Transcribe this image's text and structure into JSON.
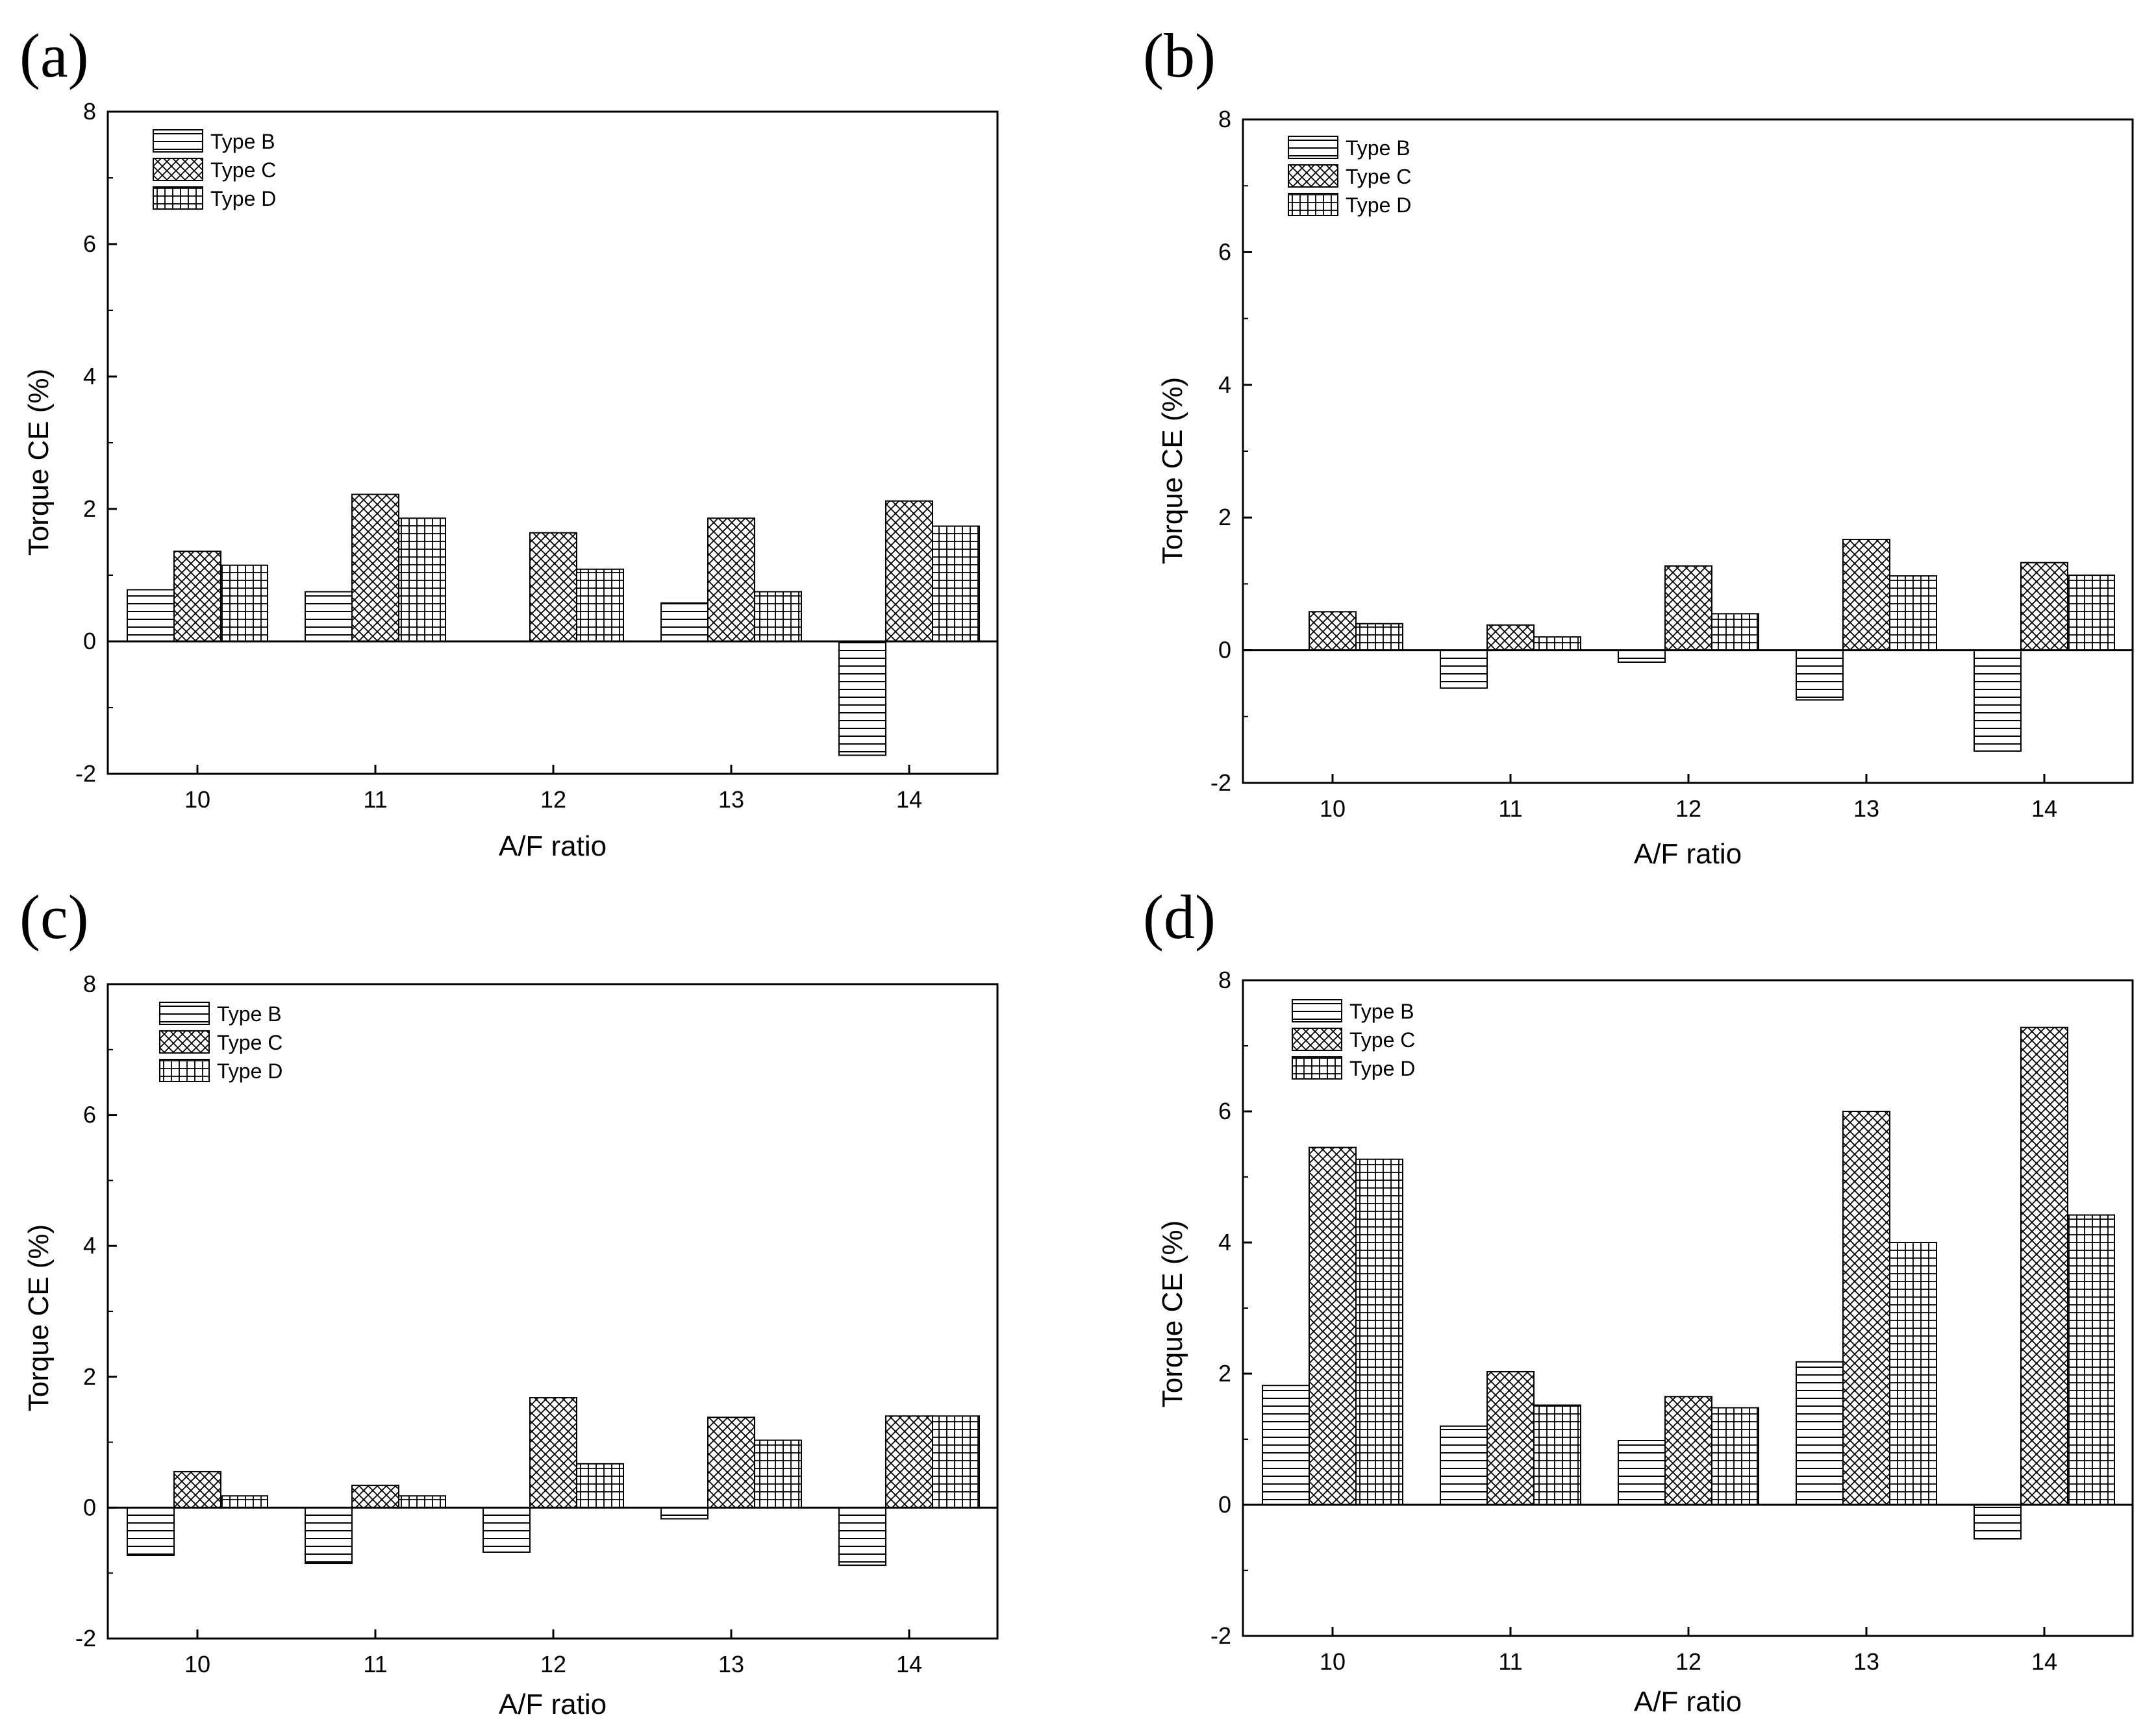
{
  "figure": {
    "series_names": [
      "Type B",
      "Type C",
      "Type D"
    ],
    "series_patterns": [
      "horizontal-lines",
      "crosshatch-diagonal",
      "grid"
    ]
  },
  "chart_data": [
    {
      "type": "bar",
      "panel_label": "(a)",
      "categories": [
        "10",
        "11",
        "12",
        "13",
        "14"
      ],
      "series": [
        {
          "name": "Type B",
          "values": [
            0.78,
            0.75,
            0.0,
            0.58,
            -1.72
          ]
        },
        {
          "name": "Type C",
          "values": [
            1.36,
            2.22,
            1.64,
            1.86,
            2.12
          ]
        },
        {
          "name": "Type D",
          "values": [
            1.15,
            1.86,
            1.09,
            0.75,
            1.74
          ]
        }
      ],
      "xlabel": "A/F ratio",
      "ylabel": "Torque CE (%)",
      "ylim": [
        -2,
        8
      ],
      "yticks": [
        "-2",
        "0",
        "2",
        "4",
        "6",
        "8"
      ],
      "legend": "top-left"
    },
    {
      "type": "bar",
      "panel_label": "(b)",
      "categories": [
        "10",
        "11",
        "12",
        "13",
        "14"
      ],
      "series": [
        {
          "name": "Type B",
          "values": [
            0.0,
            -0.57,
            -0.18,
            -0.75,
            -1.52
          ]
        },
        {
          "name": "Type C",
          "values": [
            0.58,
            0.38,
            1.27,
            1.67,
            1.32
          ]
        },
        {
          "name": "Type D",
          "values": [
            0.4,
            0.2,
            0.55,
            1.12,
            1.13
          ]
        }
      ],
      "xlabel": "A/F ratio",
      "ylabel": "Torque CE (%)",
      "ylim": [
        -2,
        8
      ],
      "yticks": [
        "-2",
        "0",
        "2",
        "4",
        "6",
        "8"
      ],
      "legend": "top-left"
    },
    {
      "type": "bar",
      "panel_label": "(c)",
      "categories": [
        "10",
        "11",
        "12",
        "13",
        "14"
      ],
      "series": [
        {
          "name": "Type B",
          "values": [
            -0.73,
            -0.85,
            -0.68,
            -0.17,
            -0.88
          ]
        },
        {
          "name": "Type C",
          "values": [
            0.55,
            0.34,
            1.68,
            1.38,
            1.4
          ]
        },
        {
          "name": "Type D",
          "values": [
            0.18,
            0.18,
            0.67,
            1.03,
            1.4
          ]
        }
      ],
      "xlabel": "A/F ratio",
      "ylabel": "Torque CE (%)",
      "ylim": [
        -2,
        8
      ],
      "yticks": [
        "-2",
        "0",
        "2",
        "4",
        "6",
        "8"
      ],
      "legend": "top-left"
    },
    {
      "type": "bar",
      "panel_label": "(d)",
      "categories": [
        "10",
        "11",
        "12",
        "13",
        "14"
      ],
      "series": [
        {
          "name": "Type B",
          "values": [
            1.82,
            1.2,
            0.98,
            2.18,
            -0.52
          ]
        },
        {
          "name": "Type C",
          "values": [
            5.45,
            2.03,
            1.65,
            6.0,
            7.28
          ]
        },
        {
          "name": "Type D",
          "values": [
            5.27,
            1.52,
            1.48,
            4.0,
            4.42
          ]
        }
      ],
      "xlabel": "A/F ratio",
      "ylabel": "Torque CE (%)",
      "ylim": [
        -2,
        8
      ],
      "yticks": [
        "-2",
        "0",
        "2",
        "4",
        "6",
        "8"
      ],
      "legend": "top-left"
    }
  ]
}
